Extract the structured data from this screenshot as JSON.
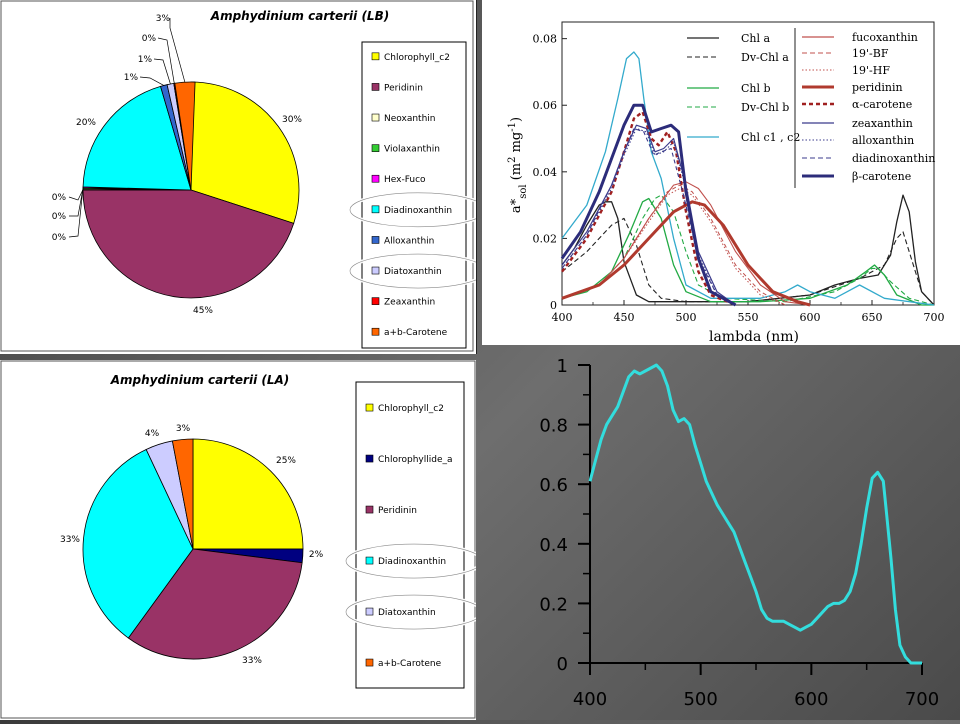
{
  "colors": {
    "chlorophyll_c2": "#ffff00",
    "peridinin": "#993366",
    "neoxanthin": "#ffffcc",
    "violaxanthin": "#33cc33",
    "hex_fuco": "#ff00ff",
    "diadinoxanthin": "#00ffff",
    "alloxanthin": "#3366cc",
    "diatoxanthin": "#ccccff",
    "zeaxanthin": "#ff0000",
    "carotene": "#ff6600",
    "chlorophyllide_a": "#000080",
    "absorption_line": "#33dddd",
    "highlight_ring": "#ffffff"
  },
  "chart_data": [
    {
      "type": "pie",
      "title": "Amphydinium carterii (LB)",
      "slices": [
        {
          "label": "Chlorophyll_c2",
          "value": 30,
          "text": "30%",
          "color": "#ffff00"
        },
        {
          "label": "Peridinin",
          "value": 45,
          "text": "45%",
          "color": "#993366"
        },
        {
          "label": "Neoxanthin",
          "value": 0,
          "text": "0%",
          "color": "#ffffcc"
        },
        {
          "label": "Violaxanthin",
          "value": 0,
          "text": "0%",
          "color": "#33cc33"
        },
        {
          "label": "Hex-Fuco",
          "value": 0,
          "text": "0%",
          "color": "#ff00ff"
        },
        {
          "label": "Diadinoxanthin",
          "value": 20,
          "text": "20%",
          "color": "#00ffff"
        },
        {
          "label": "Alloxanthin",
          "value": 1,
          "text": "1%",
          "color": "#3366cc"
        },
        {
          "label": "Diatoxanthin",
          "value": 1,
          "text": "1%",
          "color": "#ccccff"
        },
        {
          "label": "Zeaxanthin",
          "value": 0,
          "text": "0%",
          "color": "#ff0000"
        },
        {
          "label": "a+b-Carotene",
          "value": 3,
          "text": "3%",
          "color": "#ff6600"
        }
      ],
      "legend": [
        "Chlorophyll_c2",
        "Peridinin",
        "Neoxanthin",
        "Violaxanthin",
        "Hex-Fuco",
        "Diadinoxanthin",
        "Alloxanthin",
        "Diatoxanthin",
        "Zeaxanthin",
        "a+b-Carotene"
      ],
      "highlighted": [
        "Diadinoxanthin",
        "Diatoxanthin"
      ],
      "legend_position": "right"
    },
    {
      "type": "pie",
      "title": "Amphydinium carterii (LA)",
      "slices": [
        {
          "label": "Chlorophyll_c2",
          "value": 25,
          "text": "25%",
          "color": "#ffff00"
        },
        {
          "label": "Chlorophyllide_a",
          "value": 2,
          "text": "2%",
          "color": "#000080"
        },
        {
          "label": "Peridinin",
          "value": 33,
          "text": "33%",
          "color": "#993366"
        },
        {
          "label": "Diadinoxanthin",
          "value": 33,
          "text": "33%",
          "color": "#00ffff"
        },
        {
          "label": "Diatoxanthin",
          "value": 4,
          "text": "4%",
          "color": "#ccccff"
        },
        {
          "label": "a+b-Carotene",
          "value": 3,
          "text": "3%",
          "color": "#ff6600"
        }
      ],
      "legend": [
        "Chlorophyll_c2",
        "Chlorophyllide_a",
        "Peridinin",
        "Diadinoxanthin",
        "Diatoxanthin",
        "a+b-Carotene"
      ],
      "highlighted": [
        "Diadinoxanthin",
        "Diatoxanthin"
      ],
      "legend_position": "right"
    },
    {
      "type": "line",
      "xlabel": "lambda (nm)",
      "ylabel": "a*sol (m2 mg-1)",
      "xlim": [
        400,
        700
      ],
      "ylim": [
        0,
        0.085
      ],
      "xticks": [
        400,
        450,
        500,
        550,
        600,
        650,
        700
      ],
      "yticks": [
        0,
        0.02,
        0.04,
        0.06,
        0.08
      ],
      "ytick_labels": [
        "0",
        "0.02",
        "0.04",
        "0.06",
        "0.08"
      ],
      "legend_left": [
        {
          "text": "Chl a",
          "color": "#222222",
          "dash": "solid"
        },
        {
          "text": "Dv-Chl a",
          "color": "#222222",
          "dash": "dashed"
        },
        {
          "text": "Chl b",
          "color": "#22aa44",
          "dash": "solid"
        },
        {
          "text": "Dv-Chl b",
          "color": "#22aa44",
          "dash": "dashed"
        },
        {
          "text": "Chl c1 , c2",
          "color": "#33aacc",
          "dash": "solid"
        }
      ],
      "legend_right": [
        {
          "text": "fucoxanthin",
          "color": "#c0504d",
          "dash": "solid"
        },
        {
          "text": "19'-BF",
          "color": "#c0504d",
          "dash": "dashed"
        },
        {
          "text": "19'-HF",
          "color": "#c0504d",
          "dash": "dotted"
        },
        {
          "text": "peridinin",
          "color": "#b03a2e",
          "dash": "thick"
        },
        {
          "text": "α-carotene",
          "color": "#a02020",
          "dash": "thickdash"
        },
        {
          "text": "zeaxanthin",
          "color": "#3b3b8c",
          "dash": "solid"
        },
        {
          "text": "alloxanthin",
          "color": "#3b3b8c",
          "dash": "dotted"
        },
        {
          "text": "diadinoxanthin",
          "color": "#3b3b8c",
          "dash": "dashed"
        },
        {
          "text": "β-carotene",
          "color": "#2c2c7a",
          "dash": "thick"
        }
      ],
      "series": [
        {
          "name": "Chl a",
          "color": "#222222",
          "width": 1.3,
          "dash": "",
          "x": [
            400,
            410,
            420,
            430,
            435,
            440,
            445,
            450,
            460,
            470,
            500,
            550,
            600,
            620,
            640,
            655,
            665,
            670,
            675,
            680,
            685,
            690,
            700
          ],
          "y": [
            0.012,
            0.017,
            0.024,
            0.03,
            0.031,
            0.031,
            0.026,
            0.013,
            0.003,
            0.001,
            0.001,
            0.001,
            0.003,
            0.006,
            0.008,
            0.009,
            0.015,
            0.025,
            0.033,
            0.028,
            0.013,
            0.004,
            0.0
          ]
        },
        {
          "name": "Dv-Chl a",
          "color": "#222222",
          "width": 1.1,
          "dash": "5,3",
          "x": [
            400,
            420,
            440,
            450,
            460,
            470,
            480,
            500,
            550,
            600,
            640,
            660,
            670,
            675,
            680,
            690,
            700
          ],
          "y": [
            0.01,
            0.016,
            0.024,
            0.026,
            0.018,
            0.006,
            0.002,
            0.001,
            0.001,
            0.003,
            0.008,
            0.012,
            0.02,
            0.022,
            0.016,
            0.004,
            0.0
          ]
        },
        {
          "name": "Chl b",
          "color": "#22aa44",
          "width": 1.3,
          "dash": "",
          "x": [
            400,
            420,
            440,
            455,
            465,
            470,
            480,
            490,
            500,
            520,
            560,
            600,
            630,
            645,
            652,
            660,
            670,
            690,
            700
          ],
          "y": [
            0.002,
            0.004,
            0.01,
            0.022,
            0.031,
            0.032,
            0.026,
            0.012,
            0.004,
            0.001,
            0.001,
            0.002,
            0.006,
            0.01,
            0.012,
            0.009,
            0.003,
            0.0,
            0.0
          ]
        },
        {
          "name": "Dv-Chl b",
          "color": "#22aa44",
          "width": 1.1,
          "dash": "5,3",
          "x": [
            400,
            430,
            450,
            465,
            475,
            480,
            490,
            500,
            510,
            530,
            580,
            620,
            640,
            650,
            655,
            665,
            680,
            700
          ],
          "y": [
            0.002,
            0.006,
            0.014,
            0.026,
            0.032,
            0.033,
            0.028,
            0.016,
            0.006,
            0.002,
            0.001,
            0.004,
            0.008,
            0.011,
            0.011,
            0.007,
            0.002,
            0.0
          ]
        },
        {
          "name": "Chl c1 , c2",
          "color": "#33aacc",
          "width": 1.3,
          "dash": "",
          "x": [
            400,
            420,
            435,
            445,
            452,
            458,
            462,
            466,
            472,
            480,
            490,
            500,
            520,
            560,
            580,
            590,
            600,
            620,
            630,
            640,
            660,
            700
          ],
          "y": [
            0.02,
            0.03,
            0.046,
            0.062,
            0.074,
            0.076,
            0.074,
            0.062,
            0.046,
            0.038,
            0.02,
            0.006,
            0.002,
            0.002,
            0.004,
            0.006,
            0.004,
            0.002,
            0.004,
            0.006,
            0.002,
            0.0
          ]
        },
        {
          "name": "fucoxanthin",
          "color": "#c0504d",
          "width": 1.1,
          "dash": "",
          "x": [
            400,
            430,
            450,
            470,
            490,
            500,
            510,
            520,
            540,
            560,
            580,
            600
          ],
          "y": [
            0.002,
            0.006,
            0.014,
            0.026,
            0.036,
            0.037,
            0.035,
            0.03,
            0.016,
            0.006,
            0.001,
            0.0
          ]
        },
        {
          "name": "19'-BF",
          "color": "#c0504d",
          "width": 1.0,
          "dash": "4,3",
          "x": [
            400,
            430,
            450,
            470,
            485,
            495,
            505,
            520,
            540,
            560,
            580
          ],
          "y": [
            0.002,
            0.006,
            0.014,
            0.026,
            0.034,
            0.036,
            0.034,
            0.026,
            0.012,
            0.004,
            0.0
          ]
        },
        {
          "name": "19'-HF",
          "color": "#c0504d",
          "width": 1.0,
          "dash": "1.5,2",
          "x": [
            400,
            430,
            450,
            470,
            485,
            495,
            505,
            520,
            540,
            560,
            580
          ],
          "y": [
            0.002,
            0.006,
            0.014,
            0.025,
            0.033,
            0.035,
            0.033,
            0.025,
            0.011,
            0.003,
            0.0
          ]
        },
        {
          "name": "peridinin",
          "color": "#b03a2e",
          "width": 3.0,
          "dash": "",
          "x": [
            400,
            430,
            450,
            470,
            490,
            505,
            515,
            530,
            550,
            570,
            590,
            600
          ],
          "y": [
            0.002,
            0.006,
            0.012,
            0.02,
            0.028,
            0.031,
            0.03,
            0.024,
            0.012,
            0.004,
            0.001,
            0.0
          ]
        },
        {
          "name": "α-carotene",
          "color": "#a02020",
          "width": 2.4,
          "dash": "4,3",
          "x": [
            400,
            420,
            440,
            450,
            458,
            465,
            472,
            478,
            485,
            492,
            500,
            510,
            520,
            540
          ],
          "y": [
            0.01,
            0.02,
            0.034,
            0.046,
            0.056,
            0.058,
            0.05,
            0.048,
            0.052,
            0.046,
            0.028,
            0.01,
            0.003,
            0.0
          ]
        },
        {
          "name": "zeaxanthin",
          "color": "#3b3b8c",
          "width": 1.2,
          "dash": "",
          "x": [
            400,
            420,
            440,
            450,
            460,
            468,
            475,
            482,
            490,
            500,
            510,
            525,
            540
          ],
          "y": [
            0.012,
            0.022,
            0.036,
            0.046,
            0.054,
            0.053,
            0.046,
            0.047,
            0.05,
            0.036,
            0.016,
            0.004,
            0.0
          ]
        },
        {
          "name": "alloxanthin",
          "color": "#3b3b8c",
          "width": 1.1,
          "dash": "1.5,2",
          "x": [
            400,
            420,
            440,
            450,
            460,
            468,
            475,
            482,
            490,
            500,
            510,
            525,
            540
          ],
          "y": [
            0.011,
            0.021,
            0.035,
            0.045,
            0.053,
            0.052,
            0.045,
            0.046,
            0.049,
            0.035,
            0.015,
            0.003,
            0.0
          ]
        },
        {
          "name": "diadinoxanthin",
          "color": "#3b3b8c",
          "width": 1.1,
          "dash": "4,3",
          "x": [
            400,
            420,
            440,
            450,
            458,
            466,
            474,
            480,
            488,
            498,
            510,
            525,
            540
          ],
          "y": [
            0.011,
            0.021,
            0.036,
            0.046,
            0.053,
            0.052,
            0.045,
            0.046,
            0.047,
            0.033,
            0.014,
            0.003,
            0.0
          ]
        },
        {
          "name": "β-carotene",
          "color": "#2c2c7a",
          "width": 3.0,
          "dash": "",
          "x": [
            400,
            415,
            430,
            440,
            450,
            458,
            465,
            472,
            480,
            488,
            494,
            500,
            510,
            520,
            540
          ],
          "y": [
            0.014,
            0.022,
            0.034,
            0.044,
            0.054,
            0.06,
            0.06,
            0.052,
            0.053,
            0.054,
            0.052,
            0.034,
            0.014,
            0.004,
            0.0
          ]
        }
      ]
    },
    {
      "type": "line",
      "xlim": [
        400,
        700
      ],
      "ylim": [
        0,
        1
      ],
      "xticks": [
        400,
        500,
        600,
        700
      ],
      "yticks": [
        0,
        0.2,
        0.4,
        0.6,
        0.8,
        1
      ],
      "ytick_labels": [
        "0",
        "0.2",
        "0.4",
        "0.6",
        "0.8",
        "1"
      ],
      "series": [
        {
          "color": "#33dddd",
          "x": [
            400,
            405,
            410,
            415,
            420,
            425,
            430,
            435,
            440,
            445,
            450,
            455,
            460,
            465,
            470,
            475,
            480,
            485,
            490,
            495,
            500,
            505,
            510,
            515,
            520,
            525,
            530,
            535,
            540,
            545,
            550,
            555,
            560,
            565,
            570,
            575,
            580,
            585,
            590,
            595,
            600,
            605,
            610,
            615,
            620,
            625,
            630,
            635,
            640,
            645,
            650,
            655,
            660,
            665,
            668,
            672,
            676,
            680,
            685,
            690,
            695,
            700
          ],
          "y": [
            0.61,
            0.68,
            0.75,
            0.8,
            0.83,
            0.86,
            0.91,
            0.96,
            0.98,
            0.97,
            0.98,
            0.99,
            1.0,
            0.98,
            0.93,
            0.85,
            0.81,
            0.82,
            0.8,
            0.73,
            0.67,
            0.61,
            0.57,
            0.53,
            0.5,
            0.47,
            0.44,
            0.39,
            0.34,
            0.29,
            0.24,
            0.18,
            0.15,
            0.14,
            0.14,
            0.14,
            0.13,
            0.12,
            0.11,
            0.12,
            0.13,
            0.15,
            0.17,
            0.19,
            0.2,
            0.2,
            0.21,
            0.24,
            0.3,
            0.4,
            0.52,
            0.62,
            0.64,
            0.61,
            0.5,
            0.35,
            0.18,
            0.06,
            0.02,
            0.0,
            0.0,
            0.0
          ]
        }
      ]
    }
  ]
}
